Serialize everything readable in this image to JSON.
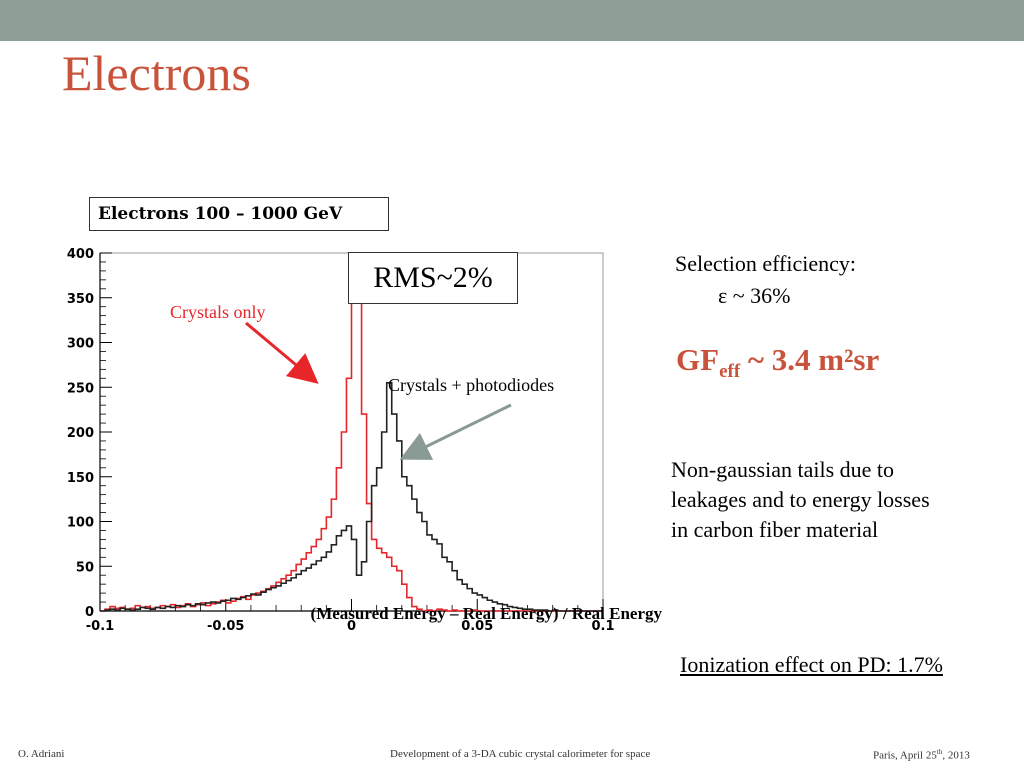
{
  "slide": {
    "title": "Electrons",
    "legend_label": "Electrons 100 – 1000 GeV",
    "rms_label": "RMS~2%",
    "selection_line1": "Selection efficiency:",
    "selection_line2": "ε ~ 36%",
    "gf_main": "GF",
    "gf_sub": "eff",
    "gf_rest": " ~ 3.4 m²sr",
    "nongaussian": "Non-gaussian tails due to leakages and to energy losses in carbon fiber material",
    "ionization": "Ionization effect on PD: 1.7%",
    "footer_left": "O. Adriani",
    "footer_center": "Development of a 3-DA cubic crystal calorimeter for space",
    "footer_right_main": "Paris, April 25",
    "footer_right_sup": "th",
    "footer_right_year": ", 2013",
    "colors": {
      "accent": "#c9523b",
      "topbar": "#8f9e96",
      "red_series": "#e8262a",
      "arrow_gray": "#8a9a94"
    }
  },
  "chart_data": {
    "type": "histogram",
    "xlabel": "(Measured Energy – Real Energy) / Real Energy",
    "xlim": [
      -0.1,
      0.1
    ],
    "ylim": [
      0,
      400
    ],
    "xticks": [
      -0.1,
      -0.05,
      0,
      0.05,
      0.1
    ],
    "xtick_labels": [
      "-0.1",
      "-0.05",
      "0",
      "0.05",
      "0.1"
    ],
    "yticks": [
      0,
      50,
      100,
      150,
      200,
      250,
      300,
      350,
      400
    ],
    "ytick_labels": [
      "0",
      "50",
      "100",
      "150",
      "200",
      "250",
      "300",
      "350",
      "400"
    ],
    "bin_edges_start": -0.1,
    "bin_width": 0.002,
    "annotations": [
      "Crystals only",
      "Crystals + photodiodes"
    ],
    "series": [
      {
        "name": "Crystals only",
        "color": "#e8262a",
        "values": [
          0,
          2,
          5,
          3,
          4,
          2,
          3,
          6,
          4,
          5,
          3,
          4,
          6,
          5,
          7,
          4,
          6,
          8,
          5,
          7,
          9,
          6,
          8,
          10,
          12,
          9,
          11,
          14,
          16,
          13,
          18,
          20,
          22,
          25,
          28,
          32,
          36,
          40,
          45,
          52,
          58,
          65,
          72,
          80,
          92,
          105,
          125,
          160,
          200,
          260,
          350,
          370,
          220,
          120,
          80,
          70,
          65,
          60,
          50,
          45,
          30,
          15,
          5,
          2,
          0,
          1,
          0,
          2,
          1,
          0,
          1,
          0,
          0,
          0,
          1,
          0,
          0,
          0,
          0,
          0,
          0,
          0,
          0,
          0,
          0,
          0,
          0,
          0,
          0,
          0,
          0,
          0,
          0,
          0,
          0,
          0,
          0,
          0,
          0,
          0
        ]
      },
      {
        "name": "Crystals + photodiodes",
        "color": "#222222",
        "values": [
          0,
          1,
          2,
          1,
          3,
          2,
          1,
          2,
          4,
          3,
          2,
          4,
          3,
          5,
          4,
          6,
          5,
          7,
          6,
          8,
          7,
          9,
          10,
          9,
          11,
          12,
          14,
          13,
          15,
          17,
          19,
          18,
          21,
          24,
          26,
          28,
          31,
          34,
          37,
          41,
          45,
          48,
          52,
          56,
          60,
          66,
          74,
          84,
          90,
          95,
          80,
          40,
          55,
          100,
          140,
          160,
          200,
          255,
          220,
          190,
          150,
          140,
          125,
          110,
          100,
          85,
          80,
          75,
          60,
          55,
          45,
          35,
          30,
          25,
          20,
          18,
          15,
          12,
          10,
          8,
          7,
          5,
          4,
          3,
          2,
          2,
          1,
          1,
          1,
          0,
          1,
          0,
          0,
          0,
          0,
          0,
          0,
          0,
          0,
          0
        ]
      }
    ]
  }
}
